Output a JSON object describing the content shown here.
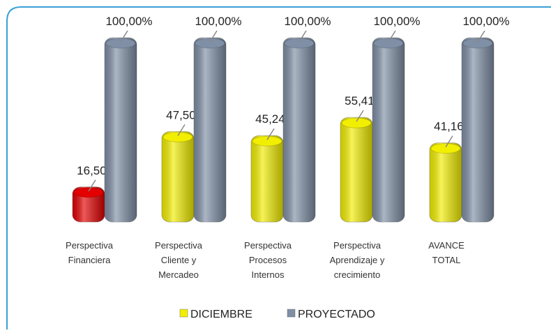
{
  "chart_data": {
    "type": "bar",
    "categories": [
      "Perspectiva\nFinanciera",
      "Perspectiva\nCliente y\nMercadeo",
      "Perspectiva\nProcesos\nInternos",
      "Perspectiva\nAprendizaje y\ncrecimiento",
      "AVANCE\nTOTAL"
    ],
    "series": [
      {
        "name": "DICIEMBRE",
        "color": "#f2ee00",
        "colors": [
          "#e30000",
          "#f2ee00",
          "#f2ee00",
          "#f2ee00",
          "#f2ee00"
        ],
        "values": [
          16.5,
          47.5,
          45.24,
          55.41,
          41.16
        ],
        "value_labels": [
          "16,50%",
          "47,50%",
          "45,24%",
          "55,41%",
          "41,16%"
        ]
      },
      {
        "name": "PROYECTADO",
        "color": "#7f8fa6",
        "values": [
          100,
          100,
          100,
          100,
          100
        ],
        "value_labels": [
          "100,00%",
          "100,00%",
          "100,00%",
          "100,00%",
          "100,00%"
        ]
      }
    ],
    "legend": "bottom"
  }
}
